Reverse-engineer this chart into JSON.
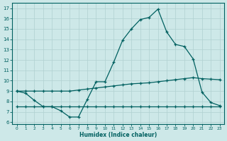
{
  "xlabel": "Humidex (Indice chaleur)",
  "bg_color": "#cde8e8",
  "grid_color": "#b0d0d0",
  "line_color": "#006060",
  "xlim": [
    -0.5,
    23.5
  ],
  "ylim": [
    5.8,
    17.5
  ],
  "yticks": [
    6,
    7,
    8,
    9,
    10,
    11,
    12,
    13,
    14,
    15,
    16,
    17
  ],
  "xticks": [
    0,
    1,
    2,
    3,
    4,
    5,
    6,
    7,
    8,
    9,
    10,
    11,
    12,
    13,
    14,
    15,
    16,
    17,
    18,
    19,
    20,
    21,
    22,
    23
  ],
  "line1_x": [
    0,
    1,
    2,
    3,
    4,
    5,
    6,
    7,
    8,
    9,
    10,
    11,
    12,
    13,
    14,
    15,
    16,
    17,
    18,
    19,
    20,
    21,
    22,
    23
  ],
  "line1_y": [
    9.0,
    8.8,
    8.1,
    7.5,
    7.5,
    7.1,
    6.5,
    6.5,
    8.2,
    9.9,
    9.9,
    11.8,
    13.9,
    15.0,
    15.9,
    16.1,
    16.9,
    14.7,
    13.5,
    13.3,
    12.1,
    8.9,
    7.9,
    7.6
  ],
  "line2_x": [
    0,
    1,
    2,
    3,
    4,
    5,
    6,
    7,
    8,
    9,
    10,
    11,
    12,
    13,
    14,
    15,
    16,
    17,
    18,
    19,
    20,
    21,
    22,
    23
  ],
  "line2_y": [
    9.0,
    9.0,
    9.0,
    9.0,
    9.0,
    9.0,
    9.0,
    9.1,
    9.2,
    9.3,
    9.4,
    9.5,
    9.6,
    9.7,
    9.75,
    9.8,
    9.9,
    10.0,
    10.1,
    10.2,
    10.3,
    10.2,
    10.15,
    10.1
  ],
  "line3_x": [
    0,
    1,
    2,
    3,
    4,
    5,
    6,
    7,
    8,
    9,
    10,
    11,
    12,
    13,
    14,
    15,
    16,
    17,
    18,
    19,
    20,
    21,
    22,
    23
  ],
  "line3_y": [
    7.5,
    7.5,
    7.5,
    7.5,
    7.5,
    7.5,
    7.5,
    7.5,
    7.5,
    7.5,
    7.5,
    7.5,
    7.5,
    7.5,
    7.5,
    7.5,
    7.5,
    7.5,
    7.5,
    7.5,
    7.5,
    7.5,
    7.5,
    7.5
  ]
}
